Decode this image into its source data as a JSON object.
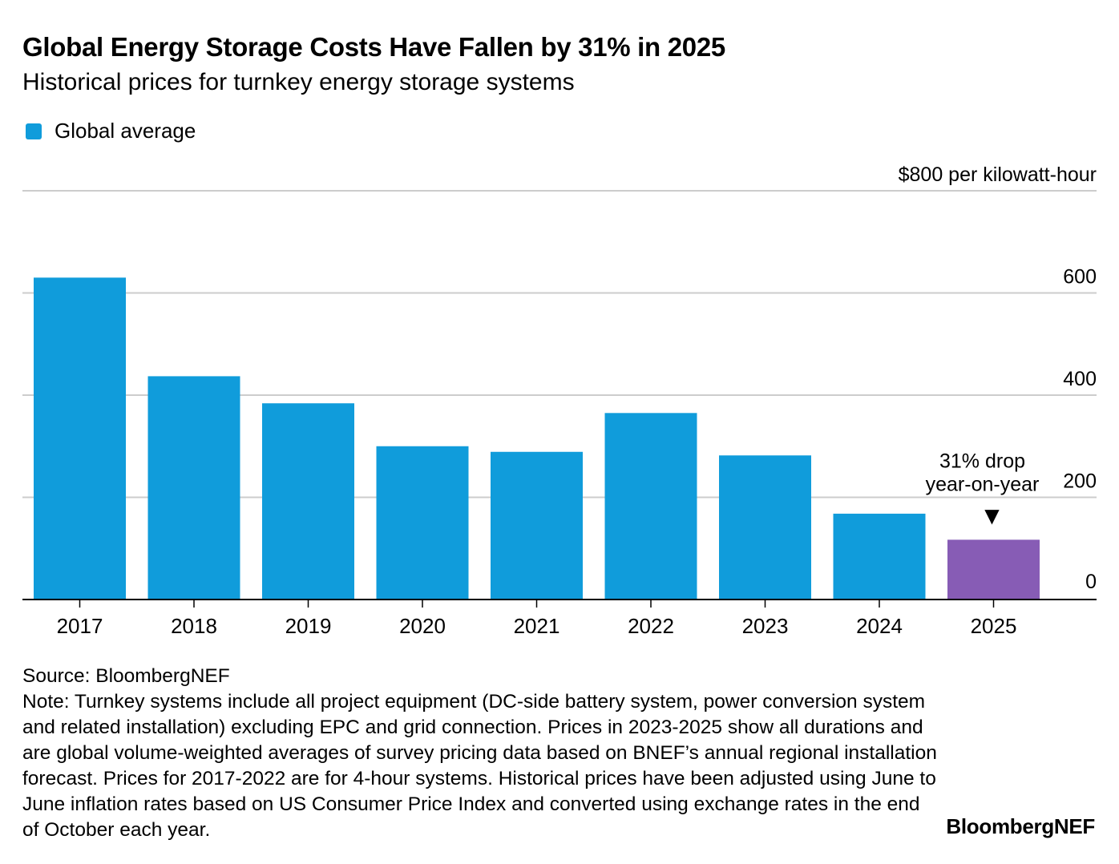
{
  "title": "Global Energy Storage Costs Have Fallen by 31% in 2025",
  "subtitle": "Historical prices for turnkey energy storage systems",
  "legend": {
    "label": "Global average",
    "color": "#109cdb"
  },
  "chart_data": {
    "type": "bar",
    "title": "Global Energy Storage Costs Have Fallen by 31% in 2025",
    "subtitle": "Historical prices for turnkey energy storage systems",
    "categories": [
      "2017",
      "2018",
      "2019",
      "2020",
      "2021",
      "2022",
      "2023",
      "2024",
      "2025"
    ],
    "series": [
      {
        "name": "Global average",
        "values": [
          630,
          437,
          384,
          300,
          289,
          365,
          282,
          168,
          117
        ]
      }
    ],
    "highlight_color": "#875cb5",
    "highlight_category": "2025",
    "bar_color": "#109cdb",
    "xlabel": "",
    "ylabel": "$800 per kilowatt-hour",
    "ylim": [
      0,
      800
    ],
    "yticks": [
      {
        "value": 200,
        "label": "200"
      },
      {
        "value": 400,
        "label": "400"
      },
      {
        "value": 600,
        "label": "600"
      },
      {
        "value": 800,
        "label": "$800 per kilowatt-hour"
      }
    ],
    "zero_label": "0",
    "y_axis_position": "right",
    "grid": true,
    "annotation": {
      "category": "2025",
      "lines": [
        "31% drop",
        "year-on-year"
      ],
      "marker": "▼"
    }
  },
  "footer": {
    "source": "Source: BloombergNEF",
    "note": "Note: Turnkey systems include all project equipment (DC-side battery system, power conversion system and related installation) excluding EPC and grid connection. Prices in 2023-2025 show all durations and are global volume-weighted averages of survey pricing data based on BNEF’s annual regional installation forecast. Prices for 2017-2022 are for 4-hour systems. Historical prices have been adjusted using June to June inflation rates based on US Consumer Price Index and converted using exchange rates in the end of October each year."
  },
  "brand": "BloombergNEF"
}
